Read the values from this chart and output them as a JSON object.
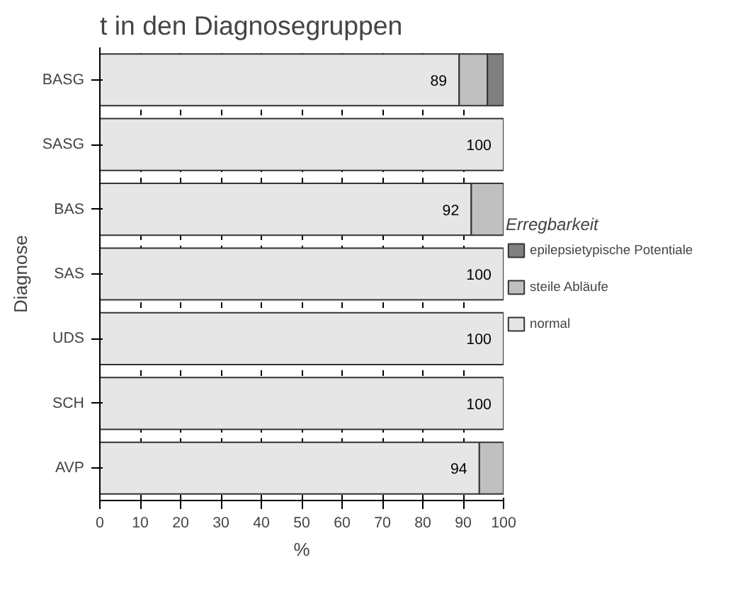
{
  "chart_data": {
    "type": "bar",
    "orientation": "horizontal",
    "stacked": true,
    "title": "t in den Diagnosegruppen",
    "xlabel": "%",
    "ylabel": "Diagnose",
    "legend_title": "Erregbarkeit",
    "categories": [
      "BASG",
      "SASG",
      "BAS",
      "SAS",
      "UDS",
      "SCH",
      "AVP"
    ],
    "series": [
      {
        "name": "normal",
        "color": "#e6e6e6",
        "values": [
          89,
          100,
          92,
          100,
          100,
          100,
          94
        ],
        "value_labels": [
          "89",
          "100",
          "92",
          "100",
          "100",
          "100",
          "94"
        ]
      },
      {
        "name": "steile Abläufe",
        "color": "#c0c0c0",
        "values": [
          7,
          0,
          8,
          0,
          0,
          0,
          6
        ]
      },
      {
        "name": "epilepsietypische Potentiale",
        "color": "#808080",
        "values": [
          4,
          0,
          0,
          0,
          0,
          0,
          0
        ]
      }
    ],
    "xlim": [
      0,
      100
    ],
    "xticks": [
      0,
      10,
      20,
      30,
      40,
      50,
      60,
      70,
      80,
      90,
      100
    ],
    "grid": "x",
    "legend": "right"
  }
}
